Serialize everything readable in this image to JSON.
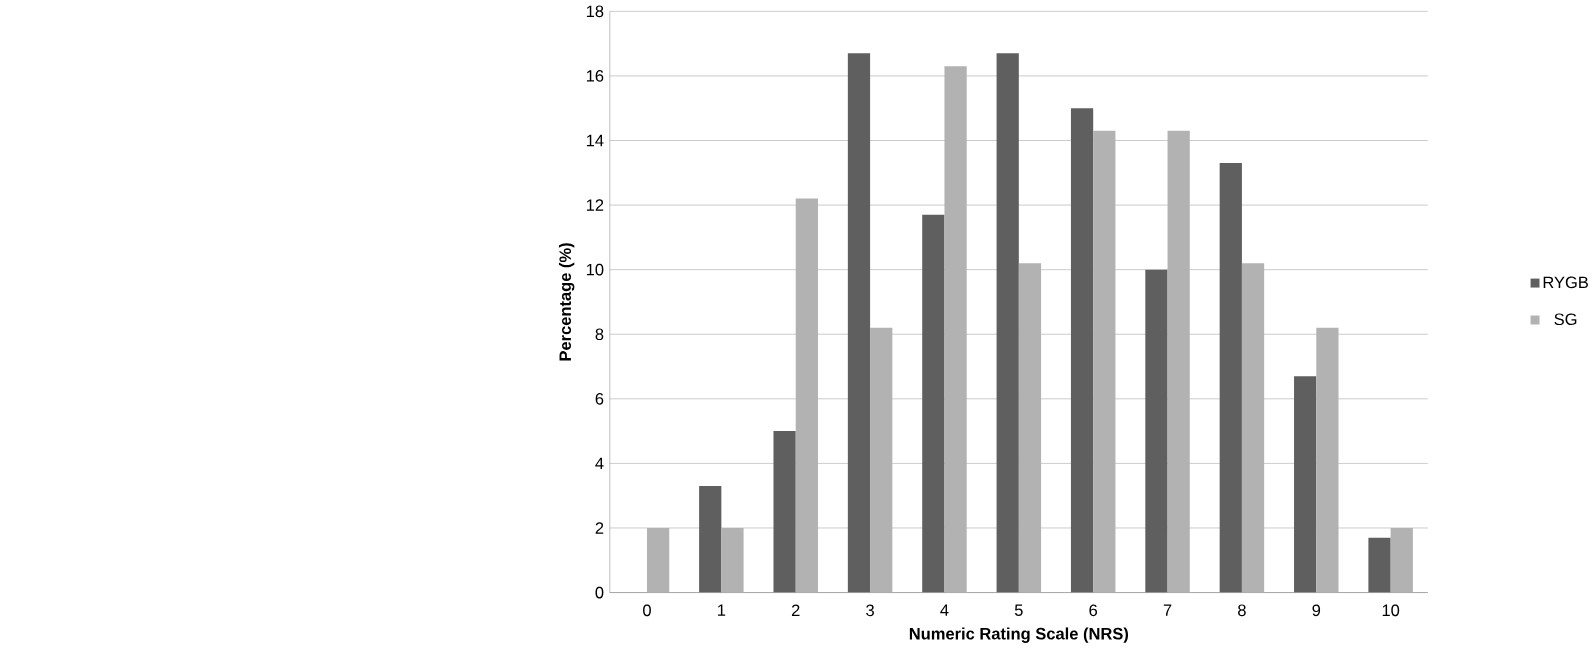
{
  "chart_data": {
    "type": "bar",
    "xlabel": "Numeric Rating Scale (NRS)",
    "ylabel": "Percentage (%)",
    "categories": [
      "0",
      "1",
      "2",
      "3",
      "4",
      "5",
      "6",
      "7",
      "8",
      "9",
      "10"
    ],
    "series": [
      {
        "name": "RYGB",
        "color": "#5f5f5f",
        "values": [
          0,
          3.3,
          5.0,
          16.7,
          11.7,
          16.7,
          15.0,
          10.0,
          13.3,
          6.7,
          1.7
        ]
      },
      {
        "name": "SG",
        "color": "#b2b2b2",
        "values": [
          2.0,
          2.0,
          12.2,
          8.2,
          16.3,
          10.2,
          14.3,
          14.3,
          10.2,
          8.2,
          2.0
        ]
      }
    ],
    "ylim": [
      0,
      18
    ],
    "yticks": [
      0,
      2,
      4,
      6,
      8,
      10,
      12,
      14,
      16,
      18
    ],
    "grid": "y",
    "legend": "right"
  }
}
